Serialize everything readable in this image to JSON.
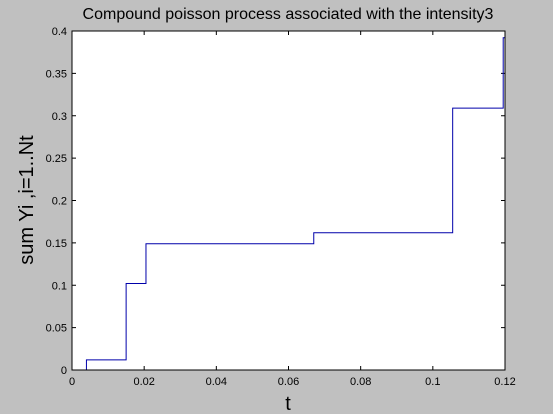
{
  "chart_data": {
    "type": "line",
    "title": "Compound poisson process associated with the intensity3",
    "xlabel": "t",
    "ylabel": "sum Yi ,i=1..Nt",
    "xlim": [
      0,
      0.12
    ],
    "ylim": [
      0,
      0.4
    ],
    "xticks": [
      "0",
      "0.02",
      "0.04",
      "0.06",
      "0.08",
      "0.1",
      "0.12"
    ],
    "yticks": [
      "0",
      "0.05",
      "0.1",
      "0.15",
      "0.2",
      "0.25",
      "0.3",
      "0.35",
      "0.4"
    ],
    "grid": false,
    "series": [
      {
        "step": "post",
        "color": "#0000aa",
        "x": [
          0,
          0.004,
          0.015,
          0.0205,
          0.067,
          0.1055,
          0.1195,
          0.12
        ],
        "y": [
          0,
          0.012,
          0.102,
          0.149,
          0.162,
          0.309,
          0.392,
          0.392
        ]
      }
    ]
  },
  "colors": {
    "figure_background": "#c0c0c0",
    "axes_background": "#ffffff",
    "line": "#0000aa"
  }
}
